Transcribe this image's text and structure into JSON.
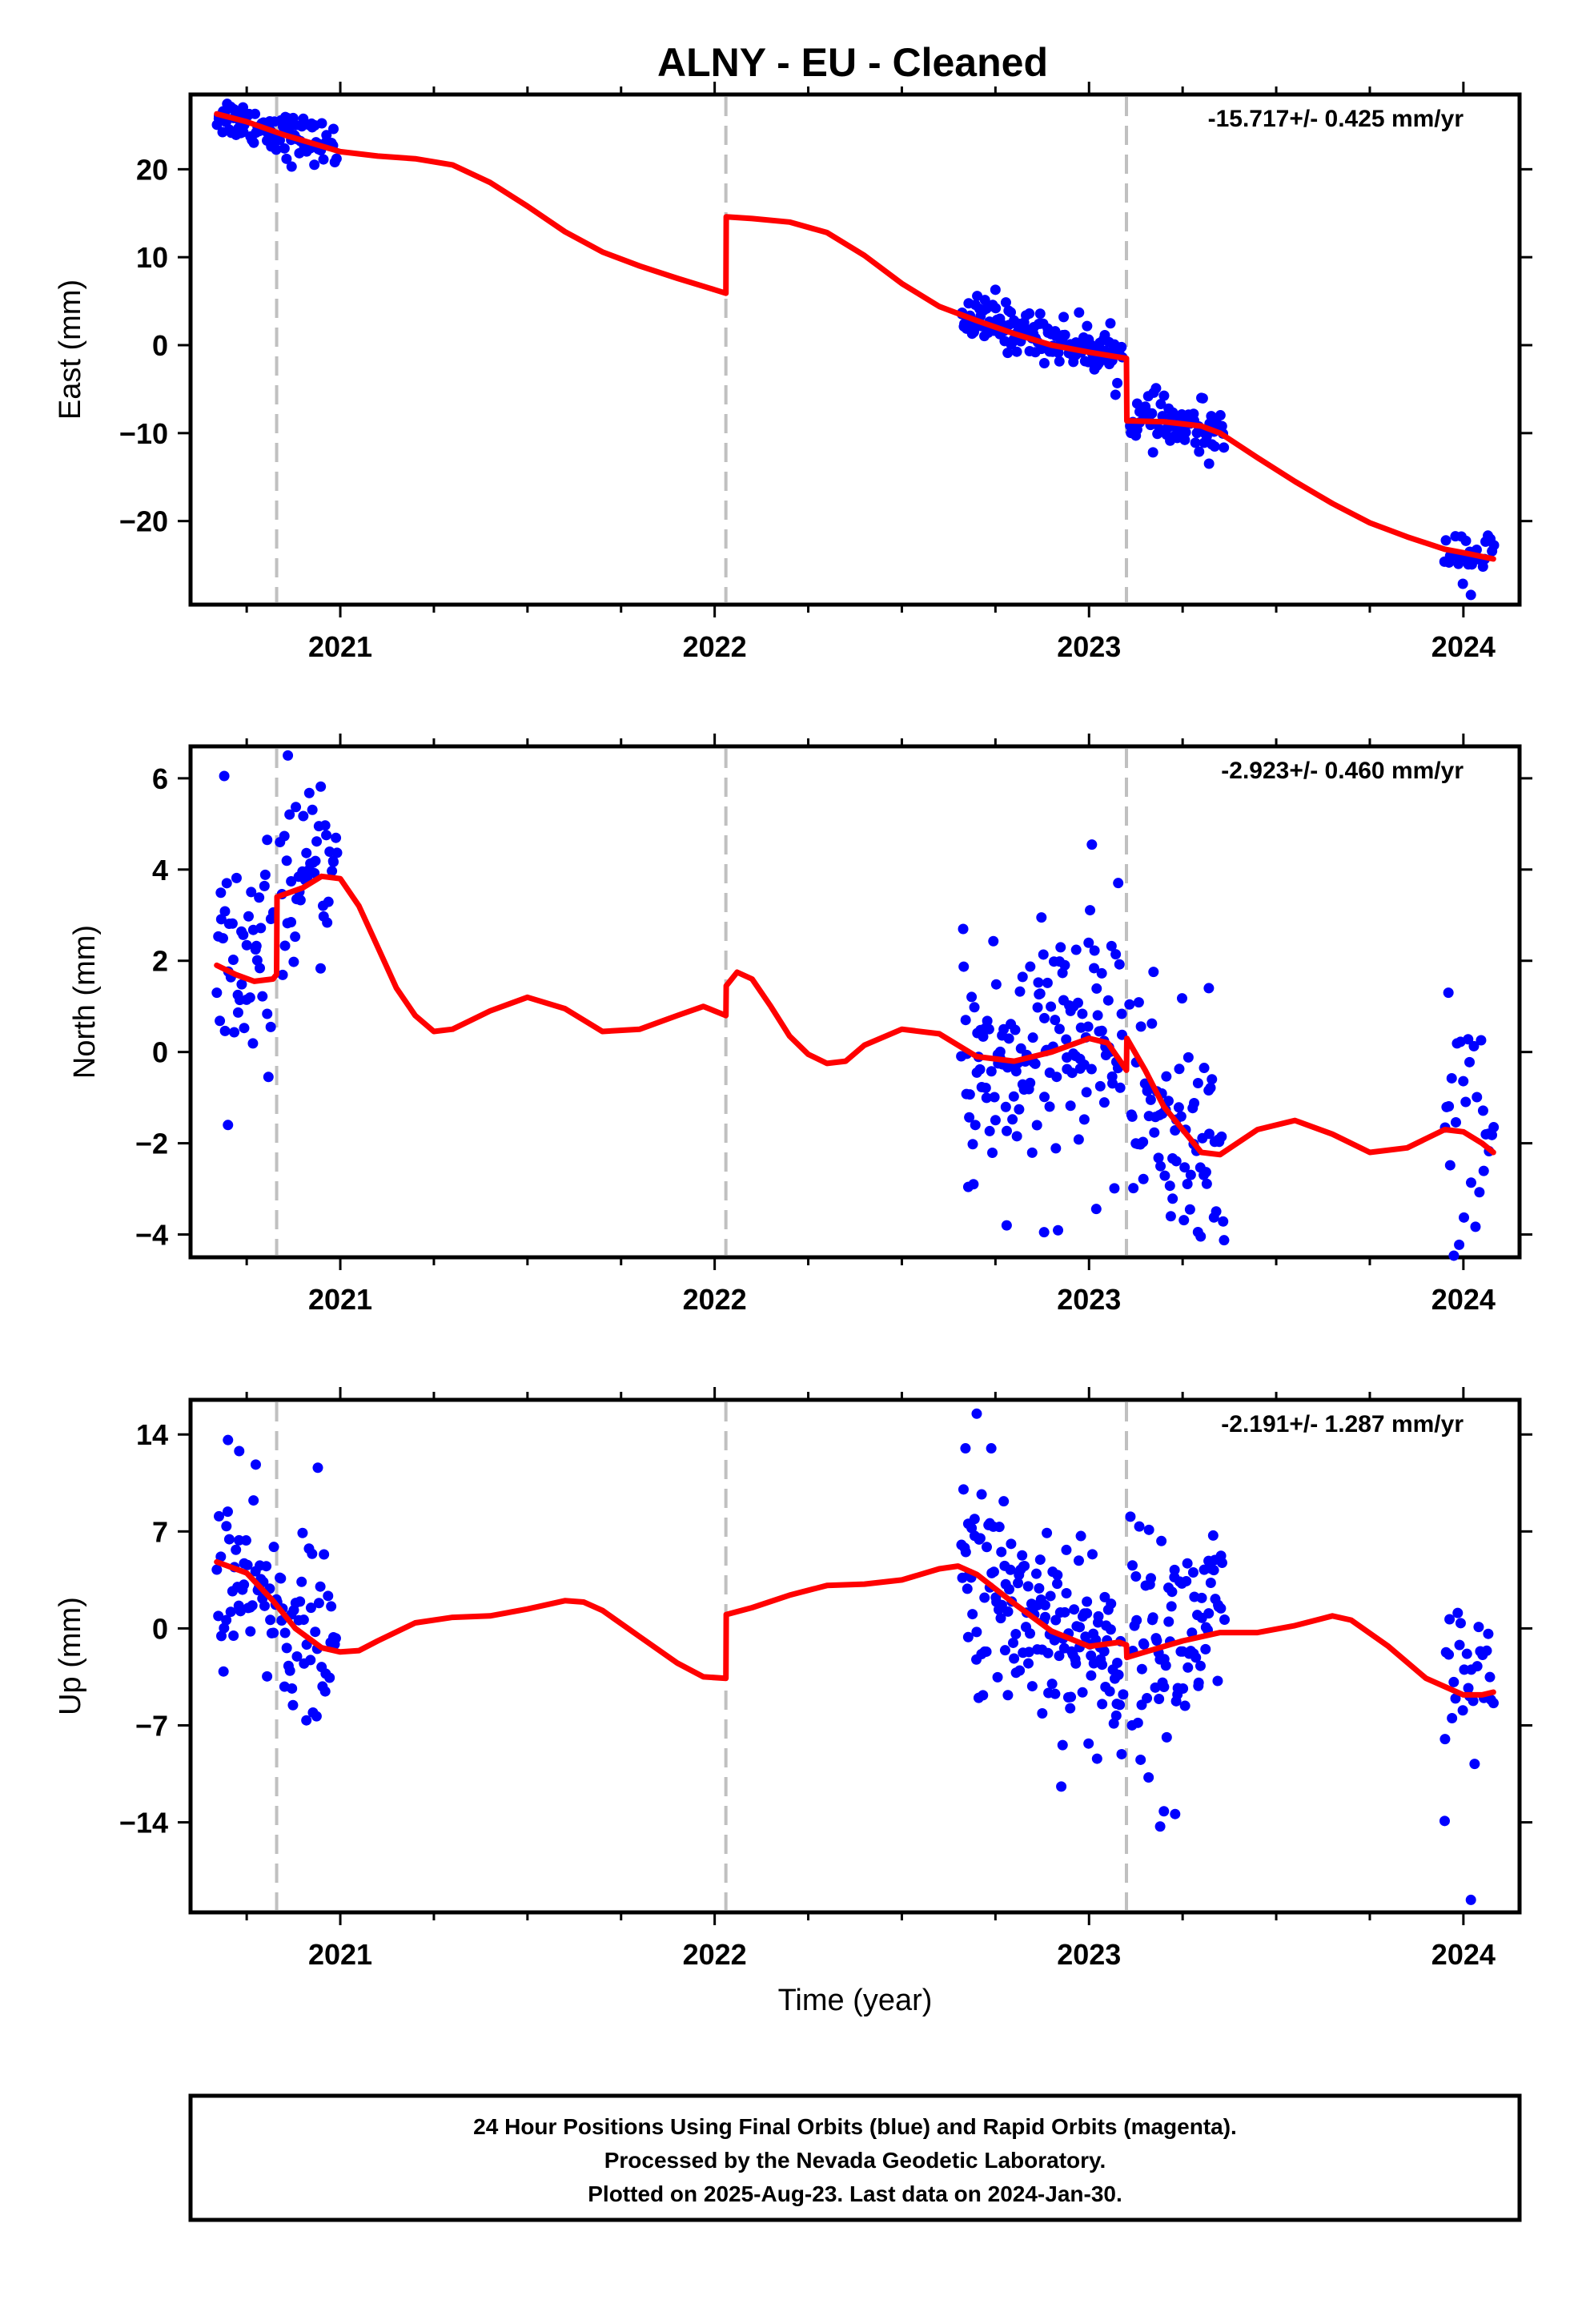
{
  "title": "ALNY  - EU - Cleaned",
  "xlabel": "Time (year)",
  "footer": [
    "24 Hour Positions Using Final Orbits (blue) and Rapid Orbits (magenta).",
    "Processed by the Nevada Geodetic Laboratory.",
    "Plotted on 2025-Aug-23. Last data on 2024-Jan-30."
  ],
  "colors": {
    "points": "#0000ff",
    "model": "#ff0000",
    "breaks": "#c0c0c0"
  },
  "chart_data": [
    {
      "type": "scatter",
      "ylabel": "East (mm)",
      "rate": "-15.717+/- 0.425 mm/yr",
      "xlim": [
        2020.6,
        2024.15
      ],
      "ylim": [
        -29.5,
        28.5
      ],
      "xticks": [
        2021,
        2022,
        2023,
        2024
      ],
      "yticks": [
        -20,
        -10,
        0,
        10,
        20
      ],
      "breaks": [
        2020.83,
        2022.03,
        2023.1
      ],
      "model": [
        [
          2020.67,
          26.3
        ],
        [
          2020.75,
          25.4
        ],
        [
          2020.85,
          23.9
        ],
        [
          2021.0,
          22.0
        ],
        [
          2021.1,
          21.5
        ],
        [
          2021.2,
          21.2
        ],
        [
          2021.3,
          20.5
        ],
        [
          2021.4,
          18.5
        ],
        [
          2021.5,
          15.8
        ],
        [
          2021.6,
          12.9
        ],
        [
          2021.7,
          10.6
        ],
        [
          2021.8,
          9.0
        ],
        [
          2021.9,
          7.6
        ],
        [
          2022.0,
          6.3
        ],
        [
          2022.03,
          5.9
        ],
        [
          2022.031,
          14.6
        ],
        [
          2022.1,
          14.4
        ],
        [
          2022.2,
          14.0
        ],
        [
          2022.3,
          12.8
        ],
        [
          2022.4,
          10.2
        ],
        [
          2022.5,
          7.0
        ],
        [
          2022.6,
          4.4
        ],
        [
          2022.7,
          2.8
        ],
        [
          2022.8,
          1.3
        ],
        [
          2022.9,
          0.0
        ],
        [
          2023.0,
          -0.8
        ],
        [
          2023.1,
          -1.5
        ],
        [
          2023.101,
          -8.6
        ],
        [
          2023.2,
          -8.7
        ],
        [
          2023.3,
          -9.2
        ],
        [
          2023.35,
          -10.0
        ],
        [
          2023.45,
          -12.8
        ],
        [
          2023.55,
          -15.5
        ],
        [
          2023.65,
          -18.0
        ],
        [
          2023.75,
          -20.2
        ],
        [
          2023.85,
          -21.8
        ],
        [
          2023.95,
          -23.2
        ],
        [
          2024.0,
          -23.6
        ],
        [
          2024.08,
          -24.3
        ]
      ],
      "clusters": [
        {
          "x0": 2020.67,
          "x1": 2020.99,
          "y0": 26.3,
          "y1": 22.5,
          "spread": 1.2,
          "n": 90
        },
        {
          "x0": 2022.66,
          "x1": 2023.09,
          "y0": 3.3,
          "y1": -1.3,
          "spread": 1.3,
          "n": 150
        },
        {
          "x0": 2023.11,
          "x1": 2023.36,
          "y0": -8.0,
          "y1": -10.5,
          "spread": 1.4,
          "n": 75
        },
        {
          "x0": 2023.95,
          "x1": 2024.08,
          "y0": -23.0,
          "y1": -24.0,
          "spread": 1.3,
          "n": 28
        }
      ],
      "outliers": [
        [
          2020.87,
          20.3
        ],
        [
          2022.75,
          6.3
        ],
        [
          2024.02,
          -28.4
        ],
        [
          2023.3,
          -6.0
        ]
      ]
    },
    {
      "type": "scatter",
      "ylabel": "North (mm)",
      "rate": "-2.923+/- 0.460 mm/yr",
      "xlim": [
        2020.6,
        2024.15
      ],
      "ylim": [
        -4.5,
        6.7
      ],
      "xticks": [
        2021,
        2022,
        2023,
        2024
      ],
      "yticks": [
        -4,
        -2,
        0,
        2,
        4,
        6
      ],
      "breaks": [
        2020.83,
        2022.03,
        2023.1
      ],
      "model": [
        [
          2020.67,
          1.9
        ],
        [
          2020.72,
          1.7
        ],
        [
          2020.77,
          1.55
        ],
        [
          2020.82,
          1.6
        ],
        [
          2020.83,
          1.7
        ],
        [
          2020.831,
          3.4
        ],
        [
          2020.9,
          3.6
        ],
        [
          2020.95,
          3.85
        ],
        [
          2021.0,
          3.8
        ],
        [
          2021.05,
          3.2
        ],
        [
          2021.1,
          2.3
        ],
        [
          2021.15,
          1.4
        ],
        [
          2021.2,
          0.8
        ],
        [
          2021.25,
          0.45
        ],
        [
          2021.3,
          0.5
        ],
        [
          2021.4,
          0.9
        ],
        [
          2021.5,
          1.2
        ],
        [
          2021.6,
          0.95
        ],
        [
          2021.7,
          0.45
        ],
        [
          2021.8,
          0.5
        ],
        [
          2021.9,
          0.8
        ],
        [
          2021.97,
          1.0
        ],
        [
          2022.03,
          0.8
        ],
        [
          2022.031,
          1.45
        ],
        [
          2022.06,
          1.75
        ],
        [
          2022.1,
          1.6
        ],
        [
          2022.15,
          1.0
        ],
        [
          2022.2,
          0.35
        ],
        [
          2022.25,
          -0.05
        ],
        [
          2022.3,
          -0.25
        ],
        [
          2022.35,
          -0.2
        ],
        [
          2022.4,
          0.15
        ],
        [
          2022.5,
          0.5
        ],
        [
          2022.6,
          0.4
        ],
        [
          2022.7,
          -0.1
        ],
        [
          2022.8,
          -0.2
        ],
        [
          2022.9,
          0.0
        ],
        [
          2023.0,
          0.3
        ],
        [
          2023.05,
          0.2
        ],
        [
          2023.1,
          -0.4
        ],
        [
          2023.101,
          0.3
        ],
        [
          2023.15,
          -0.4
        ],
        [
          2023.2,
          -1.2
        ],
        [
          2023.3,
          -2.2
        ],
        [
          2023.35,
          -2.25
        ],
        [
          2023.45,
          -1.7
        ],
        [
          2023.55,
          -1.5
        ],
        [
          2023.65,
          -1.8
        ],
        [
          2023.75,
          -2.2
        ],
        [
          2023.85,
          -2.1
        ],
        [
          2023.95,
          -1.7
        ],
        [
          2024.0,
          -1.75
        ],
        [
          2024.05,
          -2.0
        ],
        [
          2024.08,
          -2.2
        ]
      ],
      "clusters": [
        {
          "x0": 2020.67,
          "x1": 2020.82,
          "y0": 1.8,
          "y1": 1.8,
          "spread": 1.3,
          "n": 45
        },
        {
          "x0": 2020.84,
          "x1": 2020.99,
          "y0": 3.6,
          "y1": 4.0,
          "spread": 0.8,
          "n": 45
        },
        {
          "x0": 2022.66,
          "x1": 2023.09,
          "y0": -0.4,
          "y1": 0.4,
          "spread": 1.4,
          "n": 150
        },
        {
          "x0": 2023.11,
          "x1": 2023.36,
          "y0": -0.6,
          "y1": -2.8,
          "spread": 1.2,
          "n": 75
        },
        {
          "x0": 2023.95,
          "x1": 2024.08,
          "y0": -1.4,
          "y1": -2.3,
          "spread": 1.4,
          "n": 28
        }
      ],
      "outliers": [
        [
          2020.69,
          6.05
        ],
        [
          2020.86,
          6.5
        ],
        [
          2020.7,
          -1.6
        ],
        [
          2022.78,
          -3.8
        ],
        [
          2022.88,
          -3.95
        ],
        [
          2023.96,
          1.3
        ],
        [
          2023.32,
          1.4
        ]
      ]
    },
    {
      "type": "scatter",
      "ylabel": "Up (mm)",
      "rate": "-2.191+/- 1.287 mm/yr",
      "xlim": [
        2020.6,
        2024.15
      ],
      "ylim": [
        -20.5,
        16.5
      ],
      "xticks": [
        2021,
        2022,
        2023,
        2024
      ],
      "yticks": [
        -14,
        -7,
        0,
        7,
        14
      ],
      "breaks": [
        2020.83,
        2022.03,
        2023.1
      ],
      "model": [
        [
          2020.67,
          4.8
        ],
        [
          2020.75,
          4.0
        ],
        [
          2020.82,
          2.0
        ],
        [
          2020.88,
          0.0
        ],
        [
          2020.95,
          -1.4
        ],
        [
          2021.0,
          -1.7
        ],
        [
          2021.05,
          -1.6
        ],
        [
          2021.1,
          -0.9
        ],
        [
          2021.2,
          0.4
        ],
        [
          2021.3,
          0.8
        ],
        [
          2021.4,
          0.9
        ],
        [
          2021.5,
          1.4
        ],
        [
          2021.6,
          2.0
        ],
        [
          2021.65,
          1.9
        ],
        [
          2021.7,
          1.3
        ],
        [
          2021.8,
          -0.6
        ],
        [
          2021.9,
          -2.5
        ],
        [
          2021.97,
          -3.5
        ],
        [
          2022.03,
          -3.6
        ],
        [
          2022.031,
          1.0
        ],
        [
          2022.1,
          1.5
        ],
        [
          2022.2,
          2.4
        ],
        [
          2022.3,
          3.1
        ],
        [
          2022.4,
          3.2
        ],
        [
          2022.5,
          3.5
        ],
        [
          2022.6,
          4.3
        ],
        [
          2022.65,
          4.5
        ],
        [
          2022.7,
          3.9
        ],
        [
          2022.8,
          1.8
        ],
        [
          2022.9,
          -0.2
        ],
        [
          2023.0,
          -1.3
        ],
        [
          2023.08,
          -1.0
        ],
        [
          2023.1,
          -1.2
        ],
        [
          2023.101,
          -2.1
        ],
        [
          2023.15,
          -1.7
        ],
        [
          2023.25,
          -0.9
        ],
        [
          2023.35,
          -0.3
        ],
        [
          2023.45,
          -0.3
        ],
        [
          2023.55,
          0.2
        ],
        [
          2023.65,
          0.9
        ],
        [
          2023.7,
          0.6
        ],
        [
          2023.8,
          -1.3
        ],
        [
          2023.9,
          -3.6
        ],
        [
          2024.0,
          -4.8
        ],
        [
          2024.05,
          -4.8
        ],
        [
          2024.08,
          -4.6
        ]
      ],
      "clusters": [
        {
          "x0": 2020.67,
          "x1": 2020.99,
          "y0": 4.5,
          "y1": -2.0,
          "spread": 3.0,
          "n": 95
        },
        {
          "x0": 2022.66,
          "x1": 2023.09,
          "y0": 4.0,
          "y1": -2.5,
          "spread": 4.0,
          "n": 160
        },
        {
          "x0": 2023.11,
          "x1": 2023.36,
          "y0": -1.0,
          "y1": 0.0,
          "spread": 3.8,
          "n": 85
        },
        {
          "x0": 2023.95,
          "x1": 2024.08,
          "y0": -4.0,
          "y1": -4.5,
          "spread": 3.0,
          "n": 28
        }
      ],
      "outliers": [
        [
          2020.7,
          13.6
        ],
        [
          2020.73,
          12.8
        ],
        [
          2020.94,
          11.6
        ],
        [
          2022.7,
          15.5
        ],
        [
          2022.67,
          13.0
        ],
        [
          2023.2,
          -13.2
        ],
        [
          2023.23,
          -13.4
        ],
        [
          2023.19,
          -14.3
        ],
        [
          2023.95,
          -13.9
        ],
        [
          2024.02,
          -19.6
        ]
      ]
    }
  ]
}
